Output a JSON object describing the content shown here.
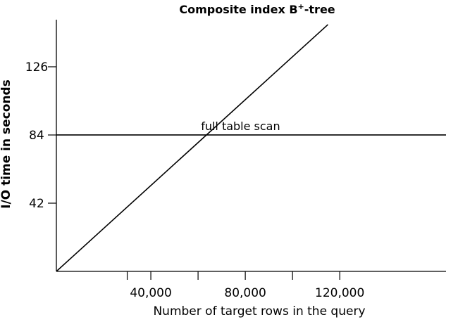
{
  "chart_data": {
    "type": "line",
    "title": {
      "main": "Composite index B",
      "sup": "+",
      "tail": "-tree"
    },
    "xlabel": "Number of target rows in the query",
    "ylabel": "I/O time in seconds",
    "xlim": [
      0,
      165000
    ],
    "ylim": [
      0,
      155
    ],
    "x_ticks": [
      30000,
      40000,
      60000,
      80000,
      100000,
      120000
    ],
    "x_tick_labels": [
      {
        "value": 40000,
        "label": "40,000"
      },
      {
        "value": 80000,
        "label": "80,000"
      },
      {
        "value": 120000,
        "label": "120,000"
      }
    ],
    "y_ticks": [
      42,
      84,
      126
    ],
    "y_tick_labels": [
      "42",
      "84",
      "126"
    ],
    "grid": false,
    "series": [
      {
        "x": [
          0,
          115000
        ],
        "y": [
          0,
          152
        ]
      },
      {
        "x": [
          0,
          165000
        ],
        "y": [
          84,
          84
        ],
        "label": "full table scan"
      }
    ]
  }
}
